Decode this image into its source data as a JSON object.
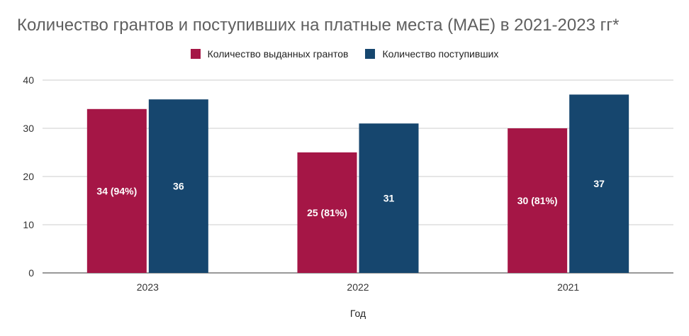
{
  "chart_data": {
    "type": "bar",
    "title": "Количество грантов и поступивших на платные места (МАЕ) в 2021-2023 гг*",
    "xlabel": "Год",
    "ylabel": "",
    "categories": [
      "2023",
      "2022",
      "2021"
    ],
    "ylim": [
      0,
      40
    ],
    "yticks": [
      "0",
      "10",
      "20",
      "30",
      "40"
    ],
    "grid": true,
    "legend_position": "top-center",
    "series": [
      {
        "name": "Количество выданных грантов",
        "color": "#a51646",
        "values": [
          34,
          25,
          30
        ],
        "labels": [
          "34 (94%)",
          "25 (81%)",
          "30 (81%)"
        ]
      },
      {
        "name": "Количество поступивших",
        "color": "#16466e",
        "values": [
          36,
          31,
          37
        ],
        "labels": [
          "36",
          "31",
          "37"
        ]
      }
    ]
  }
}
